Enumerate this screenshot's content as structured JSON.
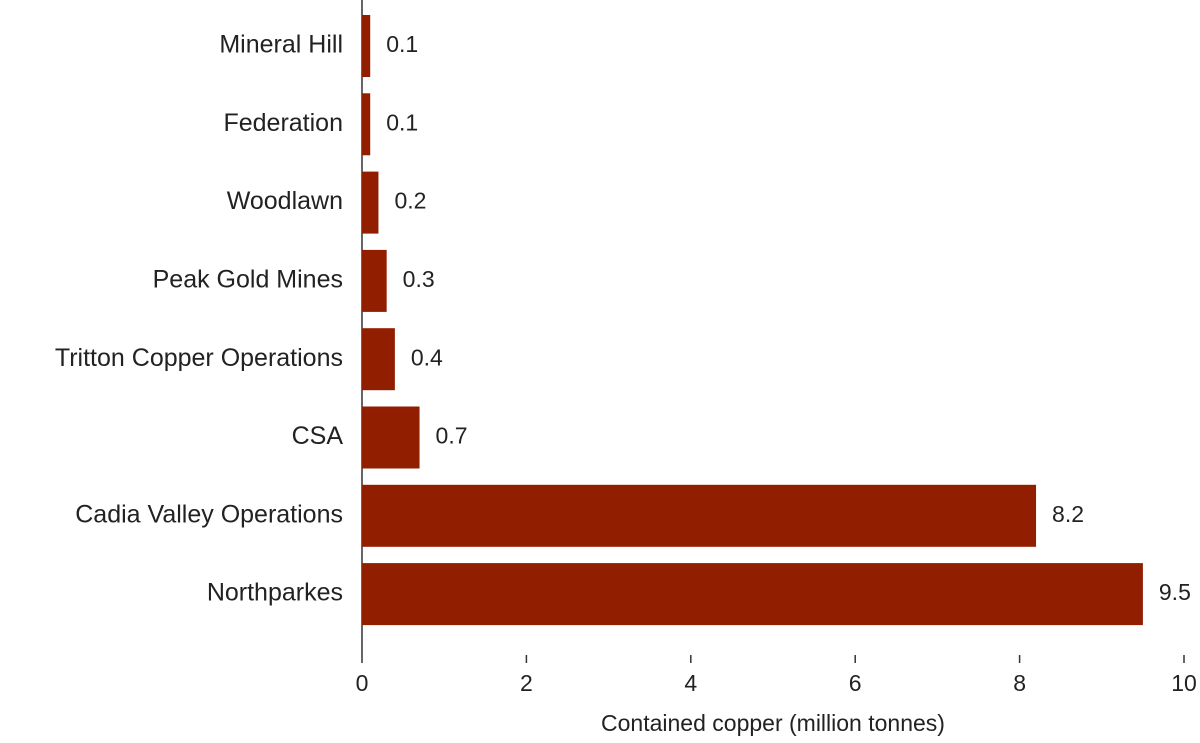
{
  "chart_data": {
    "type": "bar",
    "orientation": "horizontal",
    "categories": [
      "Mineral Hill",
      "Federation",
      "Woodlawn",
      "Peak Gold Mines",
      "Tritton Copper Operations",
      "CSA",
      "Cadia Valley Operations",
      "Northparkes"
    ],
    "values": [
      0.1,
      0.1,
      0.2,
      0.3,
      0.4,
      0.7,
      8.2,
      9.5
    ],
    "color": "#921e00",
    "x_label": "Contained copper (million tonnes)",
    "xlim": [
      0,
      10
    ],
    "xticks": [
      0,
      2,
      4,
      6,
      8,
      10
    ]
  }
}
